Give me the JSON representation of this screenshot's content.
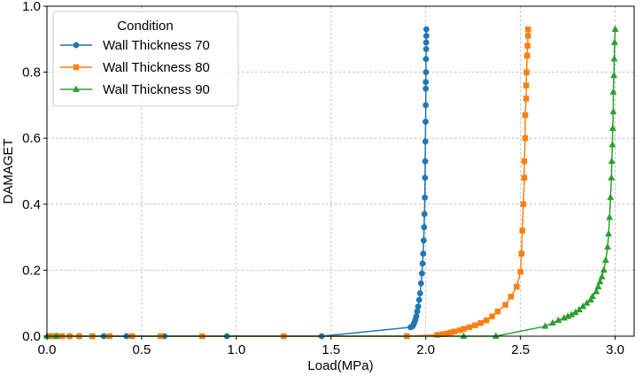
{
  "chart_data": {
    "type": "line",
    "xlabel": "Load(MPa)",
    "ylabel": "DAMAGET",
    "xlim": [
      0.0,
      3.1
    ],
    "ylim": [
      0.0,
      1.0
    ],
    "xticks": [
      "0.0",
      "0.5",
      "1.0",
      "1.5",
      "2.0",
      "2.5",
      "3.0"
    ],
    "yticks": [
      "0.0",
      "0.2",
      "0.4",
      "0.6",
      "0.8",
      "1.0"
    ],
    "grid": true,
    "legend": {
      "title": "Condition",
      "placement": "top-left"
    },
    "series": [
      {
        "name": "Wall Thickness 70",
        "color": "#1f77b4",
        "marker": "circle",
        "x": [
          0.01,
          0.02,
          0.03,
          0.05,
          0.08,
          0.12,
          0.17,
          0.24,
          0.3,
          0.42,
          0.62,
          0.95,
          1.45,
          1.92,
          1.93,
          1.935,
          1.94,
          1.945,
          1.95,
          1.955,
          1.96,
          1.965,
          1.97,
          1.975,
          1.98,
          1.983,
          1.986,
          1.989,
          1.991,
          1.993,
          1.995,
          1.996,
          1.997,
          1.998,
          1.999,
          2.0,
          2.0,
          2.0,
          2.001,
          2.001,
          2.002,
          2.002,
          2.003,
          2.003
        ],
        "y": [
          0.0,
          0.0,
          0.0,
          0.0,
          0.0,
          0.0,
          0.0,
          0.0,
          0.0,
          0.0,
          0.0,
          0.0,
          0.0,
          0.027,
          0.03,
          0.035,
          0.042,
          0.05,
          0.06,
          0.075,
          0.09,
          0.11,
          0.13,
          0.16,
          0.19,
          0.22,
          0.25,
          0.29,
          0.33,
          0.37,
          0.42,
          0.48,
          0.53,
          0.59,
          0.65,
          0.7,
          0.75,
          0.77,
          0.8,
          0.84,
          0.87,
          0.89,
          0.91,
          0.93
        ]
      },
      {
        "name": "Wall Thickness 80",
        "color": "#ff7f0e",
        "marker": "square",
        "x": [
          0.01,
          0.03,
          0.05,
          0.08,
          0.12,
          0.17,
          0.24,
          0.33,
          0.45,
          0.6,
          0.82,
          1.25,
          1.9,
          2.06,
          2.09,
          2.11,
          2.13,
          2.15,
          2.18,
          2.2,
          2.23,
          2.26,
          2.29,
          2.32,
          2.35,
          2.38,
          2.42,
          2.45,
          2.48,
          2.5,
          2.505,
          2.51,
          2.515,
          2.52,
          2.52,
          2.525,
          2.525,
          2.53,
          2.53,
          2.532,
          2.535,
          2.537,
          2.54,
          2.54
        ],
        "y": [
          0.0,
          0.0,
          0.0,
          0.0,
          0.0,
          0.0,
          0.0,
          0.0,
          0.0,
          0.0,
          0.0,
          0.0,
          0.0,
          0.004,
          0.006,
          0.008,
          0.011,
          0.014,
          0.018,
          0.022,
          0.027,
          0.033,
          0.04,
          0.048,
          0.06,
          0.075,
          0.095,
          0.12,
          0.15,
          0.195,
          0.25,
          0.32,
          0.4,
          0.48,
          0.53,
          0.6,
          0.67,
          0.72,
          0.76,
          0.8,
          0.85,
          0.88,
          0.91,
          0.93
        ]
      },
      {
        "name": "Wall Thickness 90",
        "color": "#2ca02c",
        "marker": "triangle",
        "x": [
          0.0,
          0.05,
          2.2,
          2.37,
          2.63,
          2.67,
          2.7,
          2.73,
          2.75,
          2.77,
          2.79,
          2.81,
          2.83,
          2.85,
          2.87,
          2.88,
          2.9,
          2.91,
          2.92,
          2.93,
          2.94,
          2.95,
          2.96,
          2.965,
          2.97,
          2.975,
          2.98,
          2.982,
          2.985,
          2.987,
          2.99,
          2.99,
          2.993,
          2.995,
          2.997,
          3.0
        ],
        "y": [
          0.0,
          0.0,
          0.0,
          0.0,
          0.03,
          0.04,
          0.048,
          0.055,
          0.06,
          0.065,
          0.072,
          0.08,
          0.09,
          0.1,
          0.11,
          0.12,
          0.135,
          0.15,
          0.165,
          0.18,
          0.2,
          0.23,
          0.27,
          0.31,
          0.36,
          0.42,
          0.48,
          0.53,
          0.58,
          0.63,
          0.68,
          0.74,
          0.79,
          0.84,
          0.89,
          0.93
        ]
      }
    ]
  }
}
